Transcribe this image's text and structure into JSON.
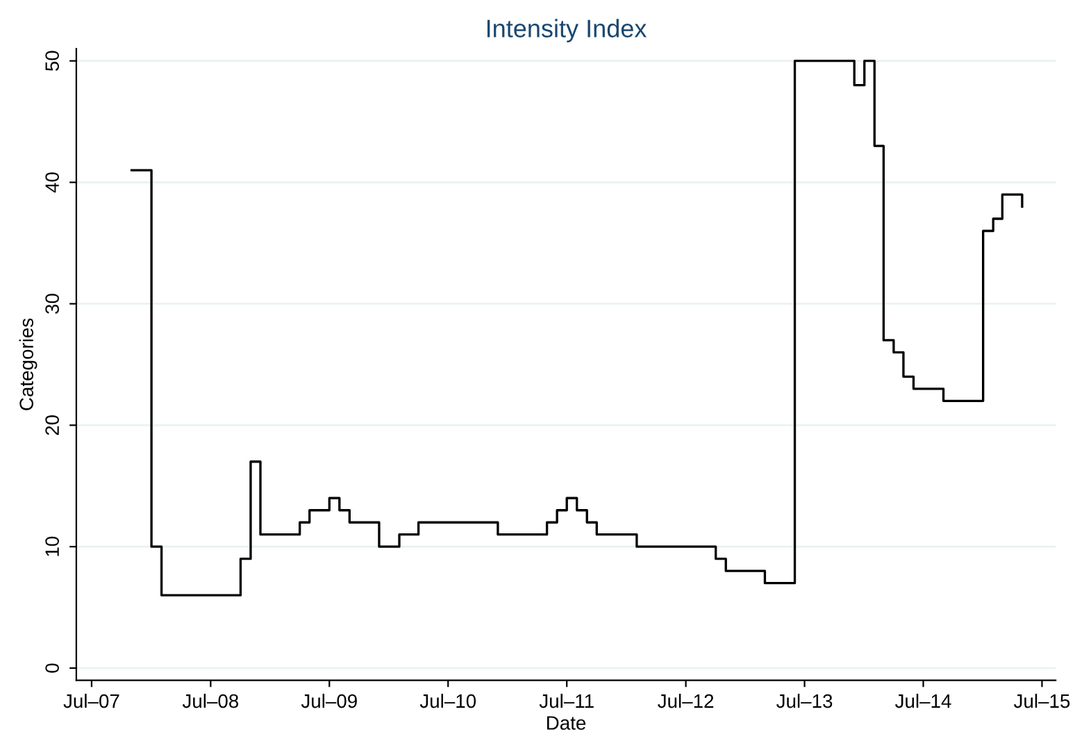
{
  "chart_data": {
    "type": "step",
    "title": "Intensity Index",
    "xlabel": "Date",
    "ylabel": "Categories",
    "x": [
      "2007-11",
      "2008-01",
      "2008-02",
      "2008-10",
      "2008-11",
      "2008-12",
      "2009-04",
      "2009-05",
      "2009-07",
      "2009-08",
      "2009-09",
      "2009-12",
      "2010-02",
      "2010-04",
      "2010-12",
      "2011-05",
      "2011-06",
      "2011-07",
      "2011-08",
      "2011-09",
      "2011-10",
      "2012-02",
      "2012-10",
      "2012-11",
      "2013-03",
      "2013-06",
      "2013-12",
      "2014-01",
      "2014-02",
      "2014-03",
      "2014-04",
      "2014-05",
      "2014-06",
      "2014-09",
      "2015-01",
      "2015-02",
      "2015-03",
      "2015-05"
    ],
    "series": [
      {
        "color": "#000000",
        "values": [
          41,
          10,
          6,
          9,
          17,
          11,
          12,
          13,
          14,
          13,
          12,
          10,
          11,
          12,
          11,
          12,
          13,
          14,
          13,
          12,
          11,
          10,
          9,
          8,
          7,
          50,
          48,
          50,
          43,
          27,
          26,
          24,
          23,
          22,
          36,
          37,
          39,
          38
        ]
      }
    ],
    "xlim": [
      "2007-05-15",
      "2015-08-12"
    ],
    "xticks": [
      {
        "value": "2007-07",
        "label": "Jul–07"
      },
      {
        "value": "2008-07",
        "label": "Jul–08"
      },
      {
        "value": "2009-07",
        "label": "Jul–09"
      },
      {
        "value": "2010-07",
        "label": "Jul–10"
      },
      {
        "value": "2011-07",
        "label": "Jul–11"
      },
      {
        "value": "2012-07",
        "label": "Jul–12"
      },
      {
        "value": "2013-07",
        "label": "Jul–13"
      },
      {
        "value": "2014-07",
        "label": "Jul–14"
      },
      {
        "value": "2015-07",
        "label": "Jul–15"
      }
    ],
    "ylim": [
      -1,
      51
    ],
    "yticks": [
      0,
      10,
      20,
      30,
      40,
      50
    ],
    "grid": "y"
  }
}
